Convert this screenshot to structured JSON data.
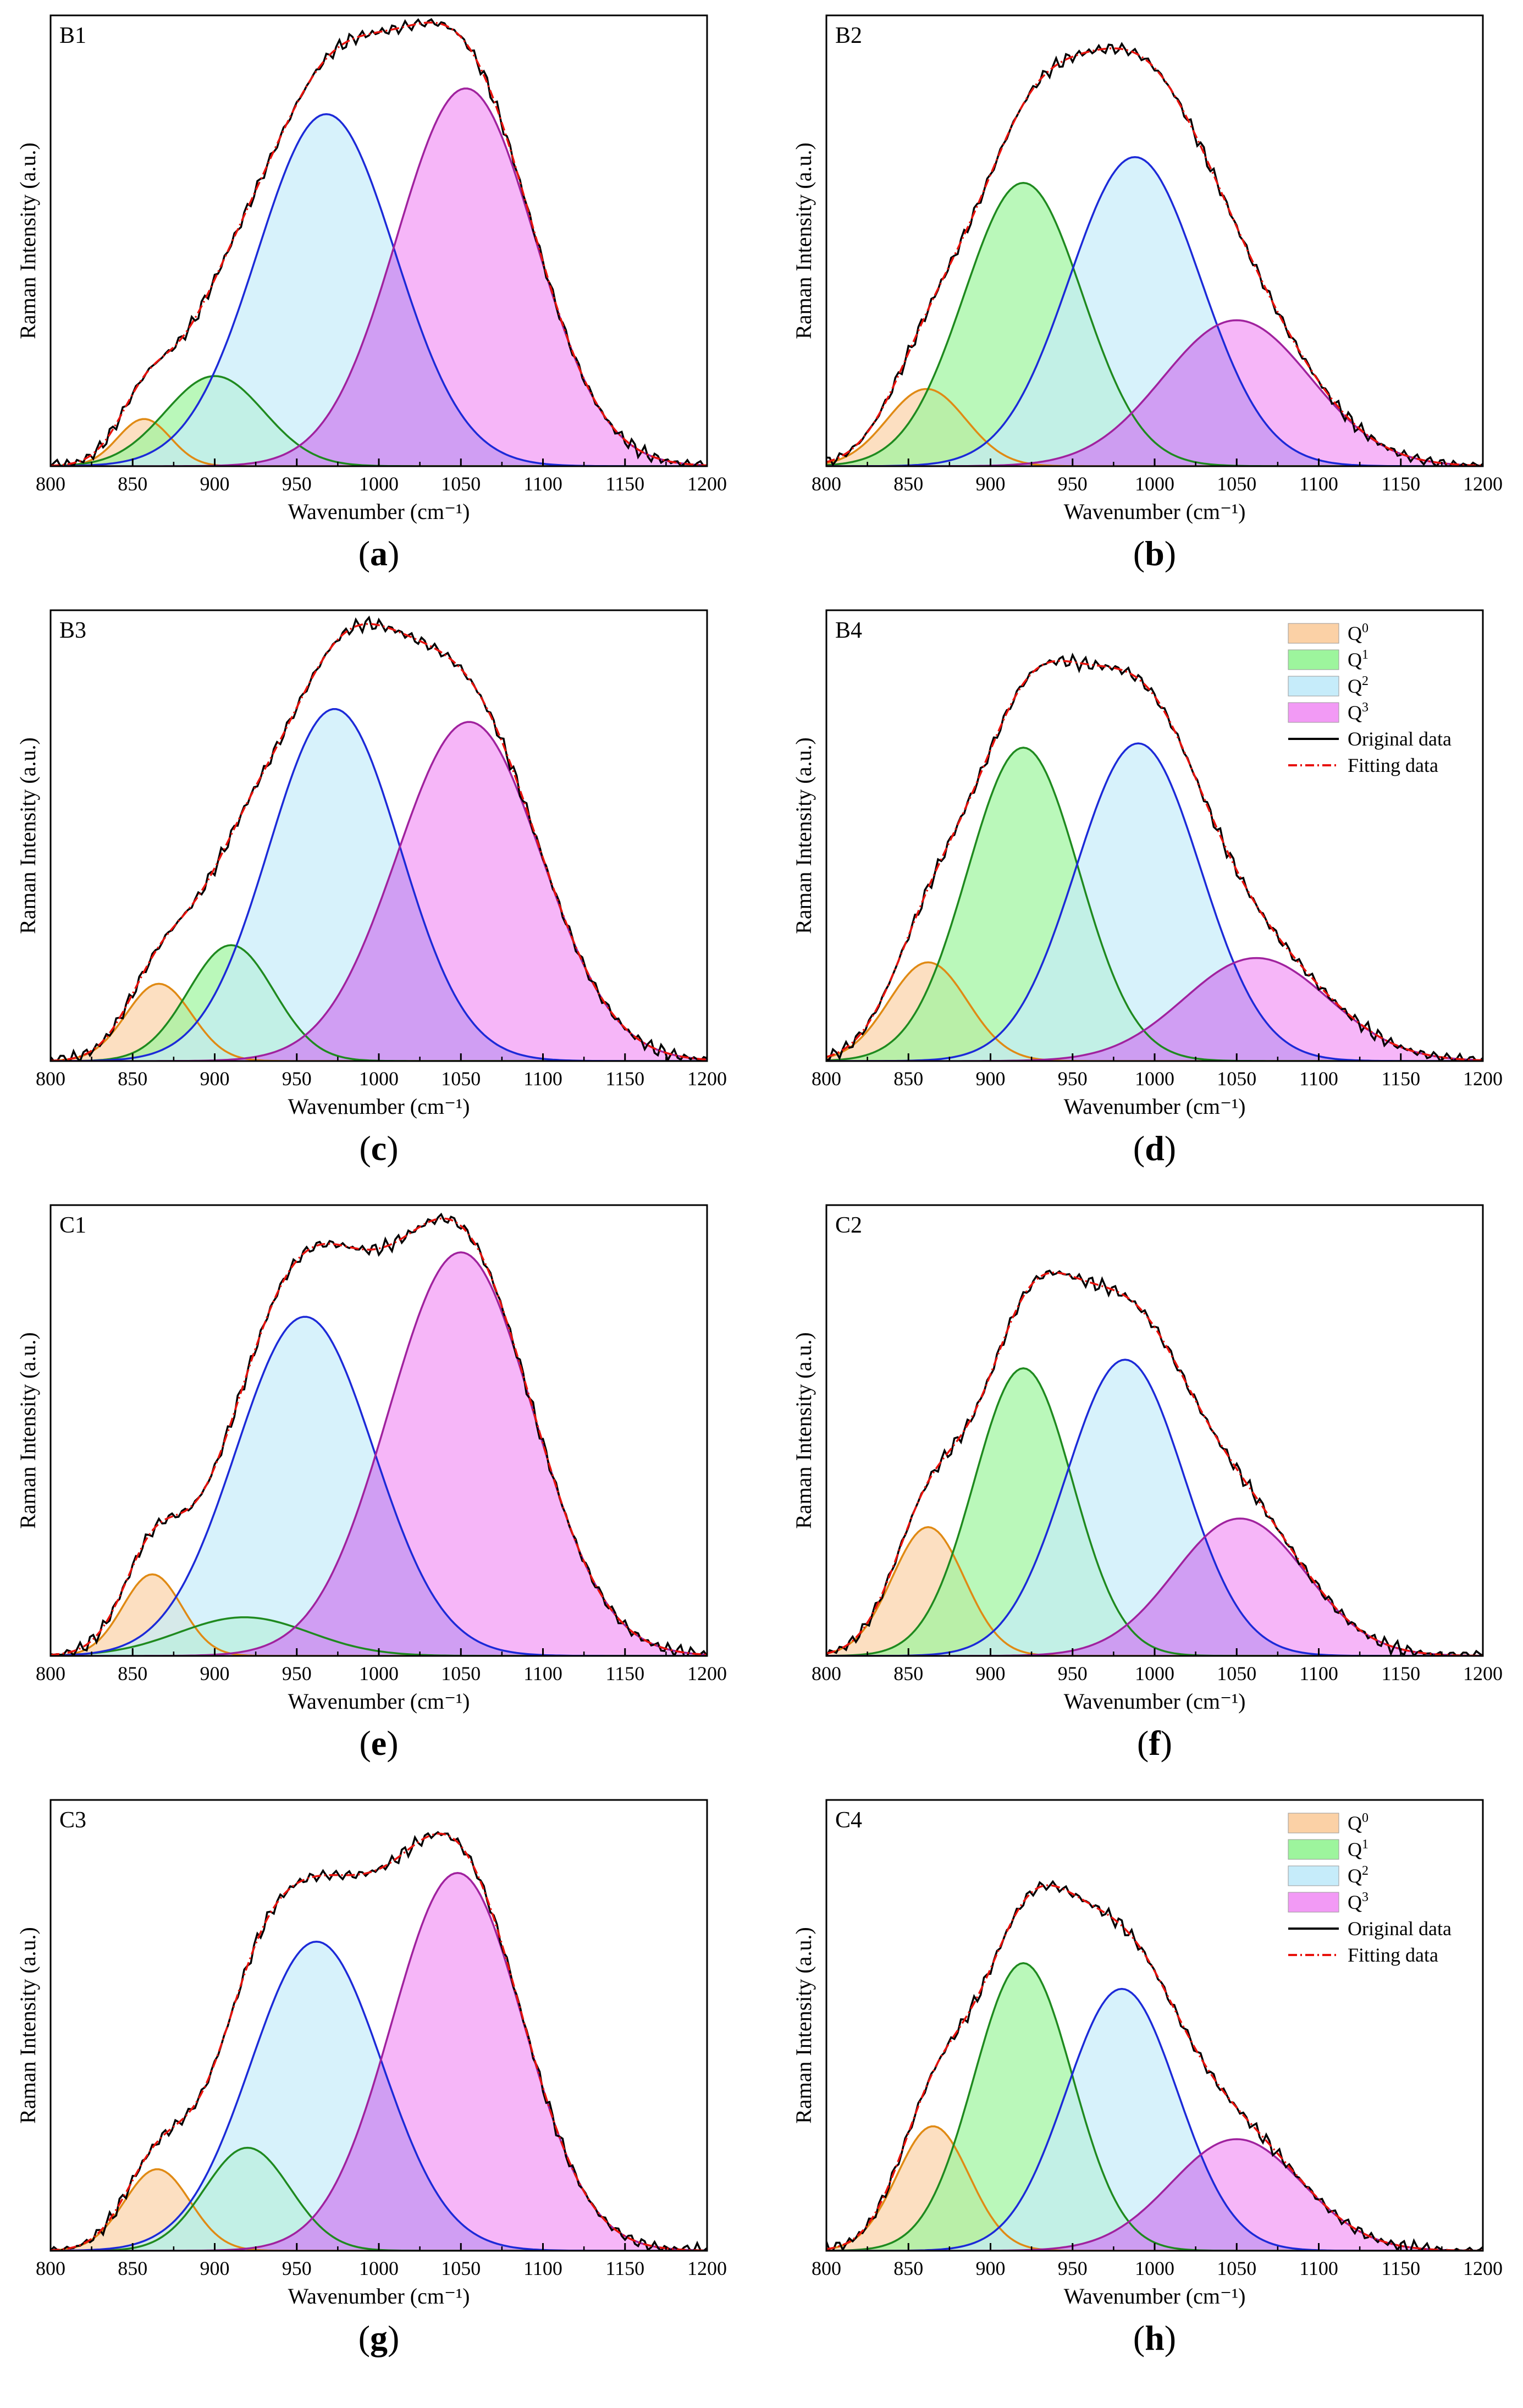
{
  "figure": {
    "colors": {
      "q0_fill": "#fbd1a6",
      "q0_line": "#e08a14",
      "q1_fill": "#9df59d",
      "q1_line": "#1f8a1f",
      "q2_fill": "#c6ecfa",
      "q2_line": "#1c2ad8",
      "q3_fill": "#f29af5",
      "q3_line": "#a0229e",
      "overlap_fill": "#b98cf0",
      "original_line": "#000000",
      "fit_line": "#e8120c"
    },
    "legend": {
      "q0": {
        "base": "Q",
        "sup": "0"
      },
      "q1": {
        "base": "Q",
        "sup": "1"
      },
      "q2": {
        "base": "Q",
        "sup": "2"
      },
      "q3": {
        "base": "Q",
        "sup": "3"
      },
      "original": "Original data",
      "fitting": "Fitting data"
    }
  },
  "chart_data": [
    {
      "type": "area",
      "panel": "B1",
      "caption": "(a)",
      "xlabel": "Wavenumber (cm⁻¹)",
      "ylabel": "Raman Intensity (a.u.)",
      "xlim": [
        800,
        1200
      ],
      "ylim": [
        0,
        1.05
      ],
      "xticks": [
        "800",
        "850",
        "900",
        "950",
        "1000",
        "1050",
        "1100",
        "1150",
        "1200"
      ],
      "series": [
        {
          "name": "Q0",
          "center": 857,
          "height": 0.11,
          "sigma": 16
        },
        {
          "name": "Q1",
          "center": 900,
          "height": 0.21,
          "sigma": 30
        },
        {
          "name": "Q2",
          "center": 968,
          "height": 0.82,
          "sigma": 42
        },
        {
          "name": "Q3",
          "center": 1053,
          "height": 0.88,
          "sigma": 42
        }
      ]
    },
    {
      "type": "area",
      "panel": "B2",
      "caption": "(b)",
      "xlabel": "Wavenumber (cm⁻¹)",
      "ylabel": "Raman Intensity (a.u.)",
      "xlim": [
        800,
        1200
      ],
      "ylim": [
        0,
        1.05
      ],
      "xticks": [
        "800",
        "850",
        "900",
        "950",
        "1000",
        "1050",
        "1100",
        "1150",
        "1200"
      ],
      "series": [
        {
          "name": "Q0",
          "center": 861,
          "height": 0.18,
          "sigma": 24
        },
        {
          "name": "Q1",
          "center": 920,
          "height": 0.66,
          "sigma": 36
        },
        {
          "name": "Q2",
          "center": 988,
          "height": 0.72,
          "sigma": 40
        },
        {
          "name": "Q3",
          "center": 1050,
          "height": 0.34,
          "sigma": 45
        }
      ]
    },
    {
      "type": "area",
      "panel": "B3",
      "caption": "(c)",
      "xlabel": "Wavenumber (cm⁻¹)",
      "ylabel": "Raman Intensity (a.u.)",
      "xlim": [
        800,
        1200
      ],
      "ylim": [
        0,
        1.05
      ],
      "xticks": [
        "800",
        "850",
        "900",
        "950",
        "1000",
        "1050",
        "1100",
        "1150",
        "1200"
      ],
      "series": [
        {
          "name": "Q0",
          "center": 866,
          "height": 0.18,
          "sigma": 20
        },
        {
          "name": "Q1",
          "center": 910,
          "height": 0.27,
          "sigma": 26
        },
        {
          "name": "Q2",
          "center": 973,
          "height": 0.82,
          "sigma": 40
        },
        {
          "name": "Q3",
          "center": 1055,
          "height": 0.79,
          "sigma": 44
        }
      ]
    },
    {
      "type": "area",
      "panel": "B4",
      "caption": "(d)",
      "show_legend": true,
      "xlabel": "Wavenumber (cm⁻¹)",
      "ylabel": "Raman Intensity (a.u.)",
      "xlim": [
        800,
        1200
      ],
      "ylim": [
        0,
        1.05
      ],
      "xticks": [
        "800",
        "850",
        "900",
        "950",
        "1000",
        "1050",
        "1100",
        "1150",
        "1200"
      ],
      "series": [
        {
          "name": "Q0",
          "center": 862,
          "height": 0.23,
          "sigma": 24
        },
        {
          "name": "Q1",
          "center": 920,
          "height": 0.73,
          "sigma": 34
        },
        {
          "name": "Q2",
          "center": 990,
          "height": 0.74,
          "sigma": 38
        },
        {
          "name": "Q3",
          "center": 1062,
          "height": 0.24,
          "sigma": 44
        }
      ]
    },
    {
      "type": "area",
      "panel": "C1",
      "caption": "(e)",
      "xlabel": "Wavenumber (cm⁻¹)",
      "ylabel": "Raman Intensity (a.u.)",
      "xlim": [
        800,
        1200
      ],
      "ylim": [
        0,
        1.05
      ],
      "xticks": [
        "800",
        "850",
        "900",
        "950",
        "1000",
        "1050",
        "1100",
        "1150",
        "1200"
      ],
      "series": [
        {
          "name": "Q0",
          "center": 862,
          "height": 0.19,
          "sigma": 18
        },
        {
          "name": "Q1",
          "center": 918,
          "height": 0.09,
          "sigma": 40
        },
        {
          "name": "Q2",
          "center": 955,
          "height": 0.79,
          "sigma": 42
        },
        {
          "name": "Q3",
          "center": 1050,
          "height": 0.94,
          "sigma": 44
        }
      ]
    },
    {
      "type": "area",
      "panel": "C2",
      "caption": "(f)",
      "xlabel": "Wavenumber (cm⁻¹)",
      "ylabel": "Raman Intensity (a.u.)",
      "xlim": [
        800,
        1200
      ],
      "ylim": [
        0,
        1.05
      ],
      "xticks": [
        "800",
        "850",
        "900",
        "950",
        "1000",
        "1050",
        "1100",
        "1150",
        "1200"
      ],
      "series": [
        {
          "name": "Q0",
          "center": 862,
          "height": 0.3,
          "sigma": 22
        },
        {
          "name": "Q1",
          "center": 920,
          "height": 0.67,
          "sigma": 30
        },
        {
          "name": "Q2",
          "center": 982,
          "height": 0.69,
          "sigma": 36
        },
        {
          "name": "Q3",
          "center": 1052,
          "height": 0.32,
          "sigma": 40
        }
      ]
    },
    {
      "type": "area",
      "panel": "C3",
      "caption": "(g)",
      "xlabel": "Wavenumber (cm⁻¹)",
      "ylabel": "Raman Intensity (a.u.)",
      "xlim": [
        800,
        1200
      ],
      "ylim": [
        0,
        1.05
      ],
      "xticks": [
        "800",
        "850",
        "900",
        "950",
        "1000",
        "1050",
        "1100",
        "1150",
        "1200"
      ],
      "series": [
        {
          "name": "Q0",
          "center": 865,
          "height": 0.19,
          "sigma": 20
        },
        {
          "name": "Q1",
          "center": 920,
          "height": 0.24,
          "sigma": 26
        },
        {
          "name": "Q2",
          "center": 962,
          "height": 0.72,
          "sigma": 40
        },
        {
          "name": "Q3",
          "center": 1048,
          "height": 0.88,
          "sigma": 40
        }
      ]
    },
    {
      "type": "area",
      "panel": "C4",
      "caption": "(h)",
      "show_legend": true,
      "xlabel": "Wavenumber (cm⁻¹)",
      "ylabel": "Raman Intensity (a.u.)",
      "xlim": [
        800,
        1200
      ],
      "ylim": [
        0,
        1.05
      ],
      "xticks": [
        "800",
        "850",
        "900",
        "950",
        "1000",
        "1050",
        "1100",
        "1150",
        "1200"
      ],
      "series": [
        {
          "name": "Q0",
          "center": 865,
          "height": 0.29,
          "sigma": 22
        },
        {
          "name": "Q1",
          "center": 920,
          "height": 0.67,
          "sigma": 30
        },
        {
          "name": "Q2",
          "center": 980,
          "height": 0.61,
          "sigma": 34
        },
        {
          "name": "Q3",
          "center": 1050,
          "height": 0.26,
          "sigma": 40
        }
      ]
    }
  ]
}
